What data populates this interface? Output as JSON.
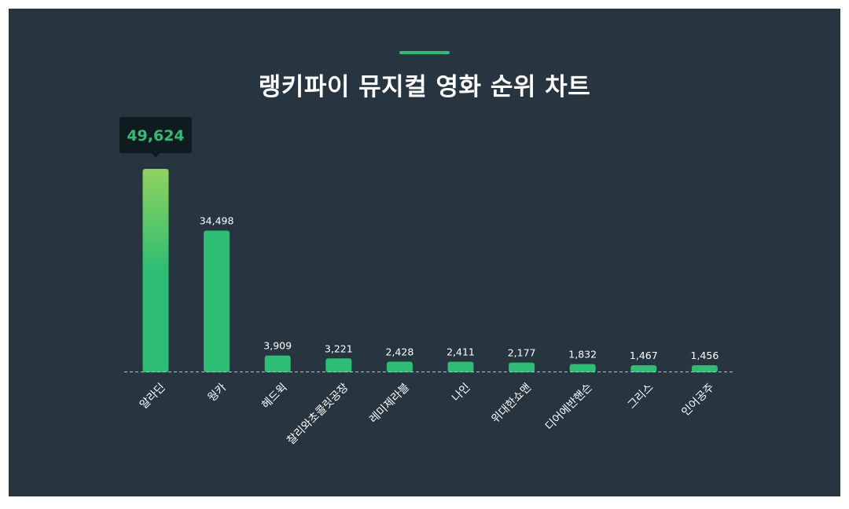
{
  "title": "랭키파이 뮤지컬 영화 순위 차트",
  "colors": {
    "background": "#263540",
    "accent": "#2dbd73",
    "bar": "#2dbd73",
    "bar_top_highlight": "#8fd35e",
    "tooltip_bg": "#0f1a21",
    "baseline": "#b8c2c8",
    "text": "#ffffff"
  },
  "highlight": {
    "category": "알라딘",
    "value_label": "49,624"
  },
  "chart_data": {
    "type": "bar",
    "title": "랭키파이 뮤지컬 영화 순위 차트",
    "xlabel": "",
    "ylabel": "",
    "ylim": [
      0,
      49624
    ],
    "grid": false,
    "categories": [
      "알라딘",
      "웡카",
      "헤드윅",
      "찰리와초콜릿공장",
      "레미제라블",
      "나인",
      "위대한쇼맨",
      "디어에반핸슨",
      "그리스",
      "인어공주"
    ],
    "values": [
      49624,
      34498,
      3909,
      3221,
      2428,
      2411,
      2177,
      1832,
      1467,
      1456
    ],
    "value_labels": [
      "49,624",
      "34,498",
      "3,909",
      "3,221",
      "2,428",
      "2,411",
      "2,177",
      "1,832",
      "1,467",
      "1,456"
    ]
  }
}
